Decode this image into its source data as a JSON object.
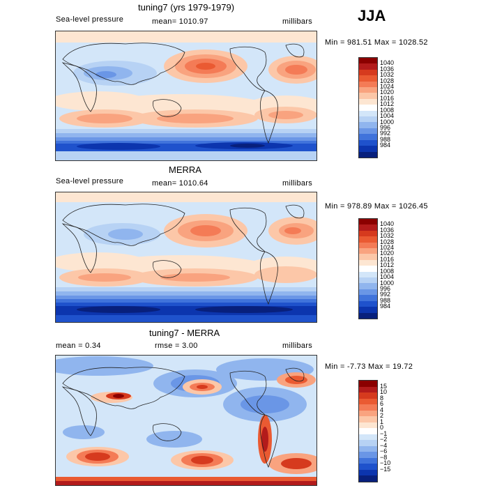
{
  "season": "JJA",
  "panels": [
    {
      "title": "tuning7 (yrs 1979-1979)",
      "left_label": "Sea-level pressure",
      "center_label": "mean= 1010.97",
      "right_label": "millibars",
      "minmax": "Min = 981.51 Max = 1028.52",
      "colors": [
        "#8b0000",
        "#b31b1b",
        "#d63a1e",
        "#ea5a32",
        "#f47b56",
        "#f9a37f",
        "#fcc7a8",
        "#fde6d2",
        "#ffffff",
        "#d3e6f9",
        "#b7d2f4",
        "#90b5ee",
        "#6a96e6",
        "#4073db",
        "#1f52cc",
        "#0c35ae",
        "#08207c"
      ],
      "ticks": [
        "1040",
        "1036",
        "1032",
        "1028",
        "1024",
        "1020",
        "1016",
        "1012",
        "1008",
        "1004",
        "1000",
        "996",
        "992",
        "988",
        "984"
      ]
    },
    {
      "title": "MERRA",
      "left_label": "Sea-level pressure",
      "center_label": "mean= 1010.64",
      "right_label": "millibars",
      "minmax": "Min = 978.89 Max = 1026.45",
      "colors": [
        "#8b0000",
        "#b31b1b",
        "#d63a1e",
        "#ea5a32",
        "#f47b56",
        "#f9a37f",
        "#fcc7a8",
        "#fde6d2",
        "#ffffff",
        "#d3e6f9",
        "#b7d2f4",
        "#90b5ee",
        "#6a96e6",
        "#4073db",
        "#1f52cc",
        "#0c35ae",
        "#08207c"
      ],
      "ticks": [
        "1040",
        "1036",
        "1032",
        "1028",
        "1024",
        "1020",
        "1016",
        "1012",
        "1008",
        "1004",
        "1000",
        "996",
        "992",
        "988",
        "984"
      ]
    },
    {
      "title": "tuning7 - MERRA",
      "left_label": "mean =    0.34",
      "center_label": "rmse =    3.00",
      "right_label": "millibars",
      "minmax": "Min =  -7.73 Max =   19.72",
      "colors": [
        "#8b0000",
        "#b31b1b",
        "#d63a1e",
        "#ea5a32",
        "#f47b56",
        "#f9a37f",
        "#fcc7a8",
        "#fde6d2",
        "#ffffff",
        "#d3e6f9",
        "#b7d2f4",
        "#90b5ee",
        "#6a96e6",
        "#4073db",
        "#1f52cc",
        "#0c35ae",
        "#08207c"
      ],
      "ticks": [
        "15",
        "10",
        "8",
        "6",
        "4",
        "2",
        "1",
        "0",
        "−1",
        "−2",
        "−4",
        "−6",
        "−8",
        "−10",
        "−15"
      ]
    }
  ],
  "chart_data": [
    {
      "type": "heatmap",
      "title": "tuning7 (yrs 1979-1979)",
      "variable": "Sea-level pressure",
      "units": "millibars",
      "mean": 1010.97,
      "min": 981.51,
      "max": 1028.52,
      "levels": [
        984,
        988,
        992,
        996,
        1000,
        1004,
        1008,
        1012,
        1016,
        1020,
        1024,
        1028,
        1032,
        1036,
        1040
      ]
    },
    {
      "type": "heatmap",
      "title": "MERRA",
      "variable": "Sea-level pressure",
      "units": "millibars",
      "mean": 1010.64,
      "min": 978.89,
      "max": 1026.45,
      "levels": [
        984,
        988,
        992,
        996,
        1000,
        1004,
        1008,
        1012,
        1016,
        1020,
        1024,
        1028,
        1032,
        1036,
        1040
      ]
    },
    {
      "type": "heatmap",
      "title": "tuning7 - MERRA",
      "units": "millibars",
      "mean": 0.34,
      "rmse": 3.0,
      "min": -7.73,
      "max": 19.72,
      "levels": [
        -15,
        -10,
        -8,
        -6,
        -4,
        -2,
        -1,
        0,
        1,
        2,
        4,
        6,
        8,
        10,
        15
      ]
    }
  ]
}
